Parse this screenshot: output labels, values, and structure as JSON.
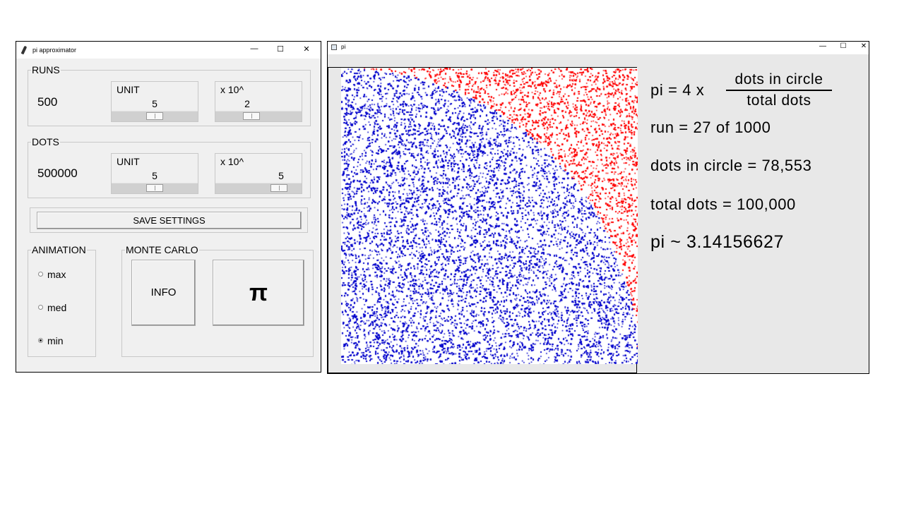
{
  "window_settings": {
    "title": "pi approximator",
    "runs": {
      "group_label": "RUNS",
      "value": "500",
      "unit_label": "UNIT",
      "unit_value": "5",
      "unit_fraction": 0.5,
      "exp_label": "x 10^",
      "exp_value": "2",
      "exp_fraction": 0.4
    },
    "dots": {
      "group_label": "DOTS",
      "value": "500000",
      "unit_label": "UNIT",
      "unit_value": "5",
      "unit_fraction": 0.5,
      "exp_label": "x 10^",
      "exp_value": "5",
      "exp_fraction": 0.8
    },
    "save_label": "SAVE  SETTINGS",
    "animation": {
      "group_label": "ANIMATION",
      "options": [
        "max",
        "med",
        "min"
      ],
      "selected": "min"
    },
    "monte_carlo": {
      "group_label": "MONTE CARLO",
      "info_label": "INFO",
      "pi_label": "π"
    },
    "controls": {
      "minimize": "—",
      "maximize": "☐",
      "close": "✕"
    }
  },
  "window_sim": {
    "title": "pi",
    "formula_lhs": "pi  =  4  x",
    "formula_num": "dots  in  circle",
    "formula_den": "total  dots",
    "run_line": "run  =  27  of  1000",
    "dots_in_circle_line": "dots  in  circle  =  78,553",
    "total_dots_line": "total  dots  =  100,000",
    "pi_estimate_line": "pi  ~  3.14156627",
    "colors": {
      "inside": "#0000cc",
      "outside": "#ff0000",
      "bg": "#ffffff"
    },
    "controls": {
      "minimize": "—",
      "maximize": "☐",
      "close": "✕"
    }
  }
}
